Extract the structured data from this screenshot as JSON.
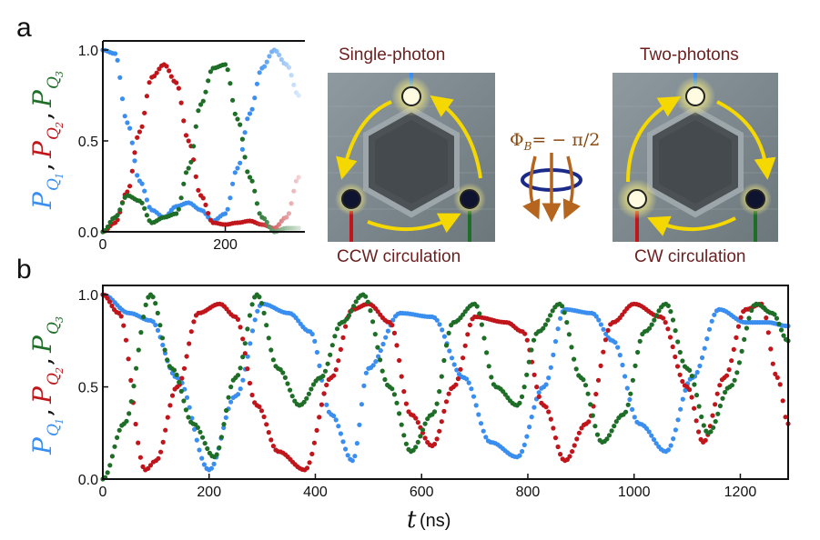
{
  "panel_labels": [
    "a",
    "b"
  ],
  "colors": {
    "q1": "#3a8ef0",
    "q2": "#c0161b",
    "q3": "#1e6e27",
    "arrow": "#f5d800",
    "flux": "#b5651d",
    "ring": "#1b2b8a",
    "caption": "#6b1f1f"
  },
  "ylabel": {
    "p": "P",
    "q": "Q",
    "subs": [
      "1",
      "2",
      "3"
    ],
    "comma": ","
  },
  "xlabel": {
    "symbol": "t",
    "unit": "(ns)"
  },
  "diagrams": {
    "left_title": "Single-photon",
    "left_caption": "CCW circulation",
    "right_title": "Two-photons",
    "right_caption": "CW circulation",
    "flux_label": "Φ",
    "flux_sub": "B",
    "flux_value": "= − π/2"
  },
  "chart_data": [
    {
      "panel": "a",
      "type": "scatter",
      "xlim": [
        0,
        330
      ],
      "ylim": [
        0,
        1.05
      ],
      "xticks": [
        0,
        200
      ],
      "yticks": [
        0.0,
        0.5,
        1.0
      ],
      "ytick_labels": [
        "0.0",
        "0.5",
        "1.0"
      ],
      "series": [
        {
          "key": "q1",
          "points": [
            [
              0,
              1.0
            ],
            [
              20,
              0.98
            ],
            [
              40,
              0.6
            ],
            [
              60,
              0.28
            ],
            [
              80,
              0.12
            ],
            [
              100,
              0.08
            ],
            [
              120,
              0.14
            ],
            [
              140,
              0.16
            ],
            [
              160,
              0.12
            ],
            [
              180,
              0.06
            ],
            [
              200,
              0.1
            ],
            [
              220,
              0.35
            ],
            [
              240,
              0.65
            ],
            [
              260,
              0.9
            ],
            [
              280,
              1.0
            ],
            [
              300,
              0.92
            ],
            [
              320,
              0.75
            ]
          ]
        },
        {
          "key": "q2",
          "points": [
            [
              0,
              0.0
            ],
            [
              20,
              0.05
            ],
            [
              40,
              0.22
            ],
            [
              60,
              0.55
            ],
            [
              80,
              0.85
            ],
            [
              100,
              0.92
            ],
            [
              120,
              0.82
            ],
            [
              140,
              0.5
            ],
            [
              160,
              0.2
            ],
            [
              180,
              0.05
            ],
            [
              200,
              0.04
            ],
            [
              220,
              0.05
            ],
            [
              240,
              0.06
            ],
            [
              260,
              0.04
            ],
            [
              280,
              0.02
            ],
            [
              300,
              0.08
            ],
            [
              320,
              0.3
            ]
          ]
        },
        {
          "key": "q3",
          "points": [
            [
              0,
              0.0
            ],
            [
              20,
              0.08
            ],
            [
              40,
              0.2
            ],
            [
              60,
              0.17
            ],
            [
              80,
              0.05
            ],
            [
              100,
              0.08
            ],
            [
              120,
              0.1
            ],
            [
              140,
              0.35
            ],
            [
              160,
              0.7
            ],
            [
              180,
              0.9
            ],
            [
              200,
              0.92
            ],
            [
              220,
              0.62
            ],
            [
              240,
              0.3
            ],
            [
              260,
              0.08
            ],
            [
              280,
              0.0
            ],
            [
              300,
              0.02
            ],
            [
              320,
              0.02
            ]
          ]
        }
      ]
    },
    {
      "panel": "b",
      "type": "scatter",
      "xlim": [
        0,
        1290
      ],
      "ylim": [
        0,
        1.05
      ],
      "xticks": [
        0,
        200,
        400,
        600,
        800,
        1000,
        1200
      ],
      "yticks": [
        0.0,
        0.5,
        1.0
      ],
      "ytick_labels": [
        "0.0",
        "0.5",
        "1.0"
      ],
      "series": [
        {
          "key": "q1",
          "points": [
            [
              0,
              1.0
            ],
            [
              50,
              0.9
            ],
            [
              90,
              0.86
            ],
            [
              140,
              0.55
            ],
            [
              200,
              0.05
            ],
            [
              250,
              0.45
            ],
            [
              300,
              0.95
            ],
            [
              350,
              0.9
            ],
            [
              390,
              0.8
            ],
            [
              430,
              0.35
            ],
            [
              470,
              0.1
            ],
            [
              500,
              0.6
            ],
            [
              560,
              0.9
            ],
            [
              620,
              0.88
            ],
            [
              680,
              0.55
            ],
            [
              730,
              0.2
            ],
            [
              780,
              0.12
            ],
            [
              830,
              0.5
            ],
            [
              870,
              0.92
            ],
            [
              920,
              0.9
            ],
            [
              960,
              0.75
            ],
            [
              1010,
              0.3
            ],
            [
              1060,
              0.15
            ],
            [
              1110,
              0.55
            ],
            [
              1160,
              0.92
            ],
            [
              1210,
              0.85
            ],
            [
              1250,
              0.85
            ],
            [
              1290,
              0.83
            ]
          ]
        },
        {
          "key": "q2",
          "points": [
            [
              0,
              1.0
            ],
            [
              30,
              0.9
            ],
            [
              80,
              0.05
            ],
            [
              100,
              0.1
            ],
            [
              140,
              0.5
            ],
            [
              180,
              0.9
            ],
            [
              220,
              0.95
            ],
            [
              250,
              0.88
            ],
            [
              290,
              0.4
            ],
            [
              330,
              0.15
            ],
            [
              380,
              0.05
            ],
            [
              430,
              0.55
            ],
            [
              470,
              0.92
            ],
            [
              500,
              0.95
            ],
            [
              540,
              0.85
            ],
            [
              580,
              0.35
            ],
            [
              620,
              0.18
            ],
            [
              660,
              0.5
            ],
            [
              700,
              0.88
            ],
            [
              760,
              0.85
            ],
            [
              790,
              0.8
            ],
            [
              830,
              0.4
            ],
            [
              870,
              0.1
            ],
            [
              910,
              0.3
            ],
            [
              960,
              0.85
            ],
            [
              1000,
              0.95
            ],
            [
              1050,
              0.88
            ],
            [
              1100,
              0.5
            ],
            [
              1130,
              0.2
            ],
            [
              1170,
              0.55
            ],
            [
              1210,
              0.92
            ],
            [
              1240,
              0.95
            ],
            [
              1270,
              0.55
            ],
            [
              1290,
              0.3
            ]
          ]
        },
        {
          "key": "q3",
          "points": [
            [
              0,
              0.0
            ],
            [
              40,
              0.3
            ],
            [
              90,
              1.0
            ],
            [
              130,
              0.6
            ],
            [
              170,
              0.3
            ],
            [
              210,
              0.12
            ],
            [
              250,
              0.55
            ],
            [
              290,
              1.0
            ],
            [
              330,
              0.6
            ],
            [
              370,
              0.4
            ],
            [
              410,
              0.55
            ],
            [
              450,
              0.85
            ],
            [
              490,
              1.0
            ],
            [
              540,
              0.5
            ],
            [
              580,
              0.15
            ],
            [
              620,
              0.35
            ],
            [
              660,
              0.85
            ],
            [
              700,
              0.95
            ],
            [
              740,
              0.5
            ],
            [
              780,
              0.4
            ],
            [
              820,
              0.8
            ],
            [
              860,
              0.95
            ],
            [
              900,
              0.55
            ],
            [
              940,
              0.2
            ],
            [
              980,
              0.35
            ],
            [
              1020,
              0.8
            ],
            [
              1060,
              0.95
            ],
            [
              1100,
              0.6
            ],
            [
              1140,
              0.25
            ],
            [
              1180,
              0.5
            ],
            [
              1230,
              0.95
            ],
            [
              1260,
              0.9
            ],
            [
              1290,
              0.75
            ]
          ]
        }
      ]
    }
  ]
}
